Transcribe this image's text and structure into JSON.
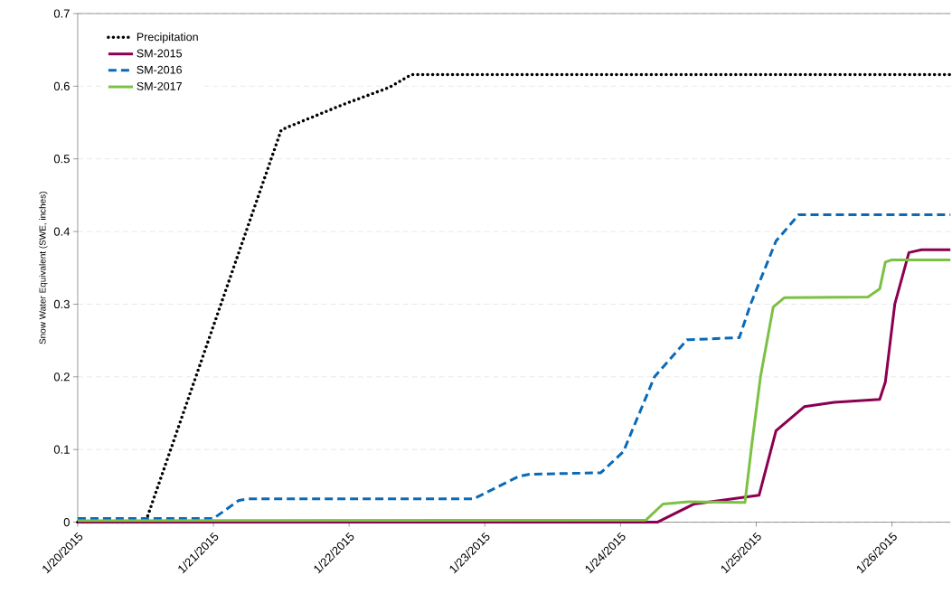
{
  "chart_data": {
    "type": "line",
    "ylabel": "Snow Water Equivalent (SWE, inches)",
    "xlim": [
      "2015-01-20T00:00",
      "2015-01-26T10:20"
    ],
    "ylim": [
      0,
      0.7
    ],
    "xticks": [
      {
        "value": "2015-01-20",
        "label": "1/20/2015"
      },
      {
        "value": "2015-01-21",
        "label": "1/21/2015"
      },
      {
        "value": "2015-01-22",
        "label": "1/22/2015"
      },
      {
        "value": "2015-01-23",
        "label": "1/23/2015"
      },
      {
        "value": "2015-01-24",
        "label": "1/24/2015"
      },
      {
        "value": "2015-01-25",
        "label": "1/25/2015"
      },
      {
        "value": "2015-01-26",
        "label": "1/26/2015"
      }
    ],
    "yticks": [
      0,
      0.1,
      0.2,
      0.3,
      0.4,
      0.5,
      0.6,
      0.7
    ],
    "grid": "y",
    "legend": "top left",
    "marker": "none",
    "series": [
      {
        "name": "Precipitation",
        "color": "#000000",
        "line_style": "dotted",
        "x": [
          "2015-01-20T00:00",
          "2015-01-20T12:00",
          "2015-01-21T12:00",
          "2015-01-21T23:00",
          "2015-01-22T07:00",
          "2015-01-22T11:00",
          "2015-01-26T10:20"
        ],
        "values": [
          0,
          0,
          0.54,
          0.575,
          0.598,
          0.616,
          0.616
        ]
      },
      {
        "name": "SM-2015",
        "color": "#8b0051",
        "line_style": "solid",
        "x": [
          "2015-01-20T00:00",
          "2015-01-24T06:30",
          "2015-01-24T13:00",
          "2015-01-25T00:30",
          "2015-01-25T03:30",
          "2015-01-25T08:30",
          "2015-01-25T13:45",
          "2015-01-25T21:50",
          "2015-01-25T22:50",
          "2015-01-26T00:30",
          "2015-01-26T03:00",
          "2015-01-26T05:15",
          "2015-01-26T10:20"
        ],
        "values": [
          0,
          0,
          0.025,
          0.037,
          0.126,
          0.159,
          0.165,
          0.169,
          0.193,
          0.3,
          0.371,
          0.375,
          0.375
        ]
      },
      {
        "name": "SM-2016",
        "color": "#0a6ab8",
        "line_style": "dashed",
        "x": [
          "2015-01-20T00:00",
          "2015-01-21T00:00",
          "2015-01-21T04:30",
          "2015-01-21T06:00",
          "2015-01-22T22:00",
          "2015-01-23T06:00",
          "2015-01-23T08:00",
          "2015-01-23T20:30",
          "2015-01-24T00:30",
          "2015-01-24T06:00",
          "2015-01-24T11:45",
          "2015-01-24T21:00",
          "2015-01-24T23:00",
          "2015-01-25T03:30",
          "2015-01-25T07:30",
          "2015-01-26T10:20"
        ],
        "values": [
          0.005,
          0.005,
          0.03,
          0.032,
          0.032,
          0.063,
          0.066,
          0.068,
          0.097,
          0.2,
          0.251,
          0.254,
          0.3,
          0.387,
          0.423,
          0.423
        ]
      },
      {
        "name": "SM-2017",
        "color": "#7bc143",
        "line_style": "solid",
        "x": [
          "2015-01-20T00:00",
          "2015-01-24T04:30",
          "2015-01-24T07:30",
          "2015-01-24T12:00",
          "2015-01-24T22:00",
          "2015-01-24T23:15",
          "2015-01-25T00:45",
          "2015-01-25T03:00",
          "2015-01-25T05:00",
          "2015-01-25T19:45",
          "2015-01-25T21:50",
          "2015-01-25T22:50",
          "2015-01-26T00:00",
          "2015-01-26T10:20"
        ],
        "values": [
          0.002,
          0.003,
          0.025,
          0.028,
          0.027,
          0.109,
          0.2,
          0.296,
          0.309,
          0.31,
          0.321,
          0.358,
          0.361,
          0.361
        ]
      }
    ]
  }
}
